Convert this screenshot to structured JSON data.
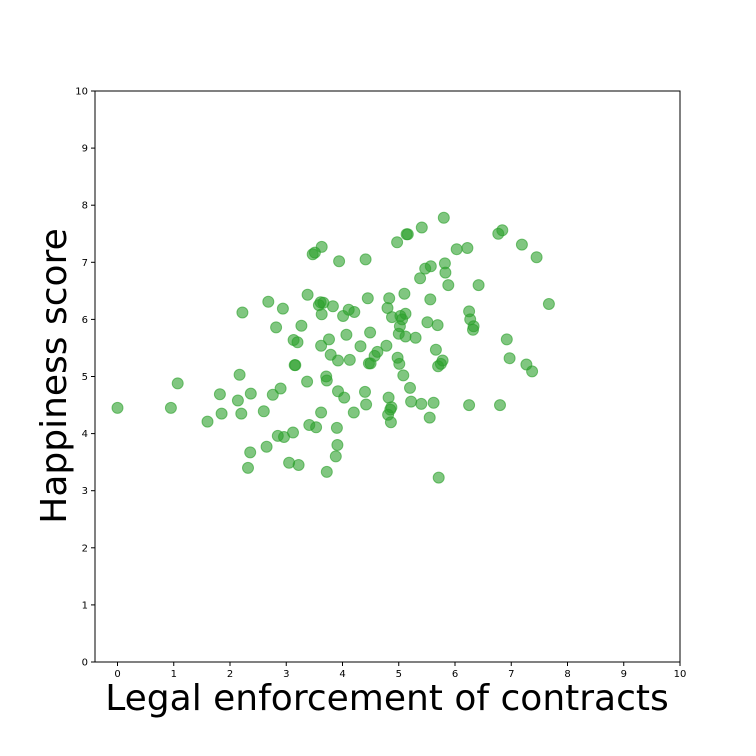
{
  "chart_data": {
    "type": "scatter",
    "xlabel": "Legal enforcement of contracts",
    "ylabel": "Happiness score",
    "xlim": [
      -0.4,
      10
    ],
    "ylim": [
      0,
      10
    ],
    "xticks": [
      "0",
      "1",
      "2",
      "3",
      "4",
      "5",
      "6",
      "7",
      "8",
      "9",
      "10"
    ],
    "yticks": [
      "0",
      "1",
      "2",
      "3",
      "4",
      "5",
      "6",
      "7",
      "8",
      "9",
      "10"
    ],
    "grid": false,
    "marker_color": "#2ca02c",
    "marker_alpha": 0.6,
    "points": [
      [
        0.0,
        4.45
      ],
      [
        0.95,
        4.45
      ],
      [
        1.07,
        4.88
      ],
      [
        1.6,
        4.21
      ],
      [
        1.82,
        4.69
      ],
      [
        1.85,
        4.35
      ],
      [
        2.14,
        4.58
      ],
      [
        2.17,
        5.03
      ],
      [
        2.2,
        4.35
      ],
      [
        2.22,
        6.12
      ],
      [
        2.32,
        3.4
      ],
      [
        2.36,
        3.67
      ],
      [
        2.37,
        4.7
      ],
      [
        2.6,
        4.39
      ],
      [
        2.65,
        3.77
      ],
      [
        2.68,
        6.31
      ],
      [
        2.76,
        4.68
      ],
      [
        2.82,
        5.86
      ],
      [
        2.85,
        3.96
      ],
      [
        2.9,
        4.79
      ],
      [
        2.94,
        6.19
      ],
      [
        2.96,
        3.94
      ],
      [
        3.05,
        3.49
      ],
      [
        3.12,
        4.02
      ],
      [
        3.13,
        5.64
      ],
      [
        3.15,
        5.2
      ],
      [
        3.16,
        5.2
      ],
      [
        3.2,
        5.6
      ],
      [
        3.22,
        3.45
      ],
      [
        3.27,
        5.89
      ],
      [
        3.37,
        4.91
      ],
      [
        3.38,
        6.43
      ],
      [
        3.41,
        4.15
      ],
      [
        3.47,
        7.14
      ],
      [
        3.51,
        7.17
      ],
      [
        3.53,
        4.11
      ],
      [
        3.58,
        6.25
      ],
      [
        3.61,
        6.3
      ],
      [
        3.62,
        5.54
      ],
      [
        3.62,
        4.37
      ],
      [
        3.63,
        6.09
      ],
      [
        3.63,
        7.27
      ],
      [
        3.66,
        6.29
      ],
      [
        3.71,
        5.0
      ],
      [
        3.72,
        4.93
      ],
      [
        3.72,
        3.33
      ],
      [
        3.76,
        5.65
      ],
      [
        3.79,
        5.38
      ],
      [
        3.83,
        6.23
      ],
      [
        3.88,
        3.6
      ],
      [
        3.9,
        4.1
      ],
      [
        3.91,
        3.8
      ],
      [
        3.92,
        4.74
      ],
      [
        3.92,
        5.28
      ],
      [
        3.94,
        7.02
      ],
      [
        4.01,
        6.06
      ],
      [
        4.03,
        4.63
      ],
      [
        4.07,
        5.73
      ],
      [
        4.11,
        6.17
      ],
      [
        4.13,
        5.29
      ],
      [
        4.2,
        4.37
      ],
      [
        4.21,
        6.13
      ],
      [
        4.32,
        5.53
      ],
      [
        4.4,
        4.73
      ],
      [
        4.41,
        7.05
      ],
      [
        4.42,
        4.51
      ],
      [
        4.45,
        6.37
      ],
      [
        4.47,
        5.23
      ],
      [
        4.49,
        5.77
      ],
      [
        4.5,
        5.23
      ],
      [
        4.57,
        5.36
      ],
      [
        4.62,
        5.43
      ],
      [
        4.78,
        5.54
      ],
      [
        4.8,
        6.2
      ],
      [
        4.81,
        4.33
      ],
      [
        4.82,
        4.63
      ],
      [
        4.83,
        6.37
      ],
      [
        4.85,
        4.42
      ],
      [
        4.86,
        4.2
      ],
      [
        4.87,
        4.46
      ],
      [
        4.88,
        6.04
      ],
      [
        4.97,
        7.35
      ],
      [
        4.98,
        5.33
      ],
      [
        5.0,
        5.75
      ],
      [
        5.01,
        5.22
      ],
      [
        5.02,
        5.88
      ],
      [
        5.03,
        6.06
      ],
      [
        5.06,
        6.0
      ],
      [
        5.08,
        5.02
      ],
      [
        5.1,
        6.45
      ],
      [
        5.12,
        6.1
      ],
      [
        5.12,
        5.7
      ],
      [
        5.14,
        7.49
      ],
      [
        5.16,
        7.49
      ],
      [
        5.2,
        4.8
      ],
      [
        5.22,
        4.56
      ],
      [
        5.3,
        5.68
      ],
      [
        5.38,
        6.72
      ],
      [
        5.4,
        4.52
      ],
      [
        5.41,
        7.61
      ],
      [
        5.47,
        6.89
      ],
      [
        5.51,
        5.95
      ],
      [
        5.55,
        4.28
      ],
      [
        5.56,
        6.35
      ],
      [
        5.57,
        6.93
      ],
      [
        5.62,
        4.54
      ],
      [
        5.66,
        5.47
      ],
      [
        5.69,
        5.9
      ],
      [
        5.7,
        5.18
      ],
      [
        5.71,
        3.23
      ],
      [
        5.75,
        5.22
      ],
      [
        5.78,
        5.28
      ],
      [
        5.8,
        7.78
      ],
      [
        5.82,
        6.98
      ],
      [
        5.83,
        6.82
      ],
      [
        5.88,
        6.6
      ],
      [
        6.03,
        7.23
      ],
      [
        6.22,
        7.25
      ],
      [
        6.25,
        6.14
      ],
      [
        6.25,
        4.5
      ],
      [
        6.27,
        6.0
      ],
      [
        6.32,
        5.82
      ],
      [
        6.33,
        5.88
      ],
      [
        6.42,
        6.6
      ],
      [
        6.77,
        7.5
      ],
      [
        6.8,
        4.5
      ],
      [
        6.84,
        7.56
      ],
      [
        6.92,
        5.65
      ],
      [
        6.97,
        5.32
      ],
      [
        7.19,
        7.31
      ],
      [
        7.27,
        5.21
      ],
      [
        7.37,
        5.09
      ],
      [
        7.45,
        7.09
      ],
      [
        7.67,
        6.27
      ]
    ]
  }
}
